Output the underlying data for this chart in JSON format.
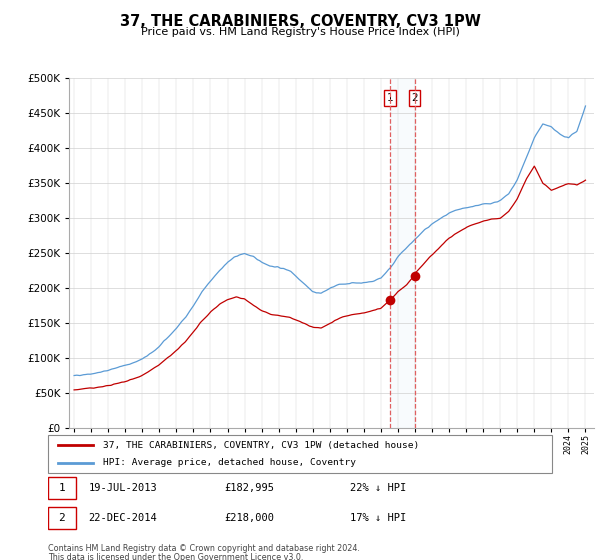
{
  "title": "37, THE CARABINIERS, COVENTRY, CV3 1PW",
  "subtitle": "Price paid vs. HM Land Registry's House Price Index (HPI)",
  "legend_line1": "37, THE CARABINIERS, COVENTRY, CV3 1PW (detached house)",
  "legend_line2": "HPI: Average price, detached house, Coventry",
  "transaction1_date": "19-JUL-2013",
  "transaction1_price": 182995,
  "transaction1_label": "22% ↓ HPI",
  "transaction2_date": "22-DEC-2014",
  "transaction2_price": 218000,
  "transaction2_label": "17% ↓ HPI",
  "footnote1": "Contains HM Land Registry data © Crown copyright and database right 2024.",
  "footnote2": "This data is licensed under the Open Government Licence v3.0.",
  "hpi_color": "#5b9bd5",
  "price_color": "#c00000",
  "marker_color": "#c00000",
  "ylim": [
    0,
    500000
  ],
  "yticks": [
    0,
    50000,
    100000,
    150000,
    200000,
    250000,
    300000,
    350000,
    400000,
    450000,
    500000
  ],
  "transaction1_x": 2013.54,
  "transaction2_x": 2014.97,
  "xmin": 1995,
  "xmax": 2025
}
